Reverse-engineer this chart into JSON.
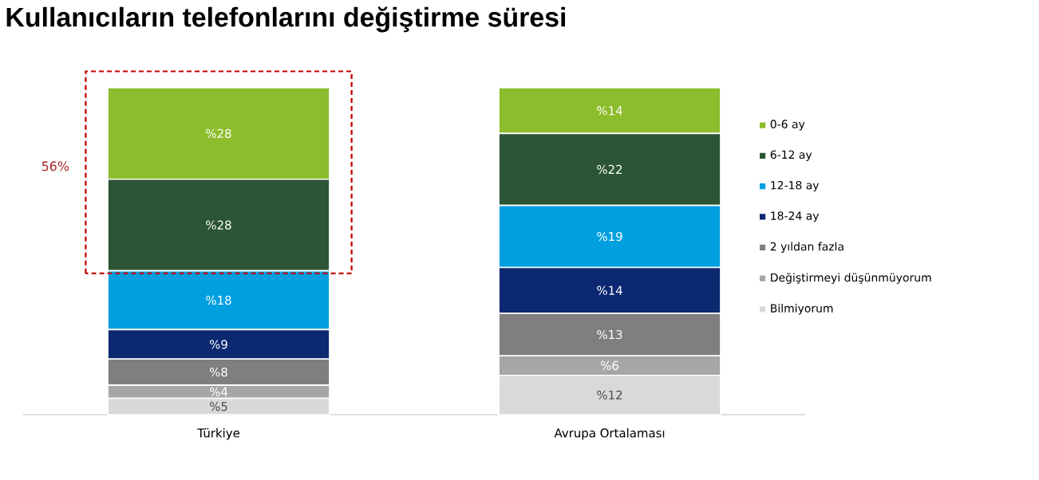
{
  "chart_data": {
    "type": "bar",
    "title": "Kullanıcıların telefonlarını değiştirme süresi",
    "categories": [
      "Türkiye",
      "Avrupa Ortalaması"
    ],
    "stacked": true,
    "legend": "right",
    "annotations": [
      "56%"
    ],
    "series": [
      {
        "name": "Bilmiyorum",
        "color": "#d9d9d9",
        "values": [
          5,
          12
        ],
        "value_labels": [
          "%5",
          "%12"
        ]
      },
      {
        "name": "Değiştirmeyi düşünmüyorum",
        "color": "#a6a6a6",
        "values": [
          4,
          6
        ],
        "value_labels": [
          "%4",
          "%6"
        ]
      },
      {
        "name": "2 yıldan fazla",
        "color": "#7f7f7f",
        "values": [
          8,
          13
        ],
        "value_labels": [
          "%8",
          "%13"
        ]
      },
      {
        "name": "18-24 ay",
        "color": "#0b2870",
        "values": [
          9,
          14
        ],
        "value_labels": [
          "%9",
          "%14"
        ]
      },
      {
        "name": "12-18 ay",
        "color": "#00a0e0",
        "values": [
          18,
          19
        ],
        "value_labels": [
          "%18",
          "%19"
        ]
      },
      {
        "name": "6-12 ay",
        "color": "#2b5534",
        "values": [
          28,
          22
        ],
        "value_labels": [
          "%28",
          "%22"
        ]
      },
      {
        "name": "0-6 ay",
        "color": "#8cbd2c",
        "values": [
          28,
          14
        ],
        "value_labels": [
          "%28",
          "%14"
        ]
      }
    ]
  }
}
